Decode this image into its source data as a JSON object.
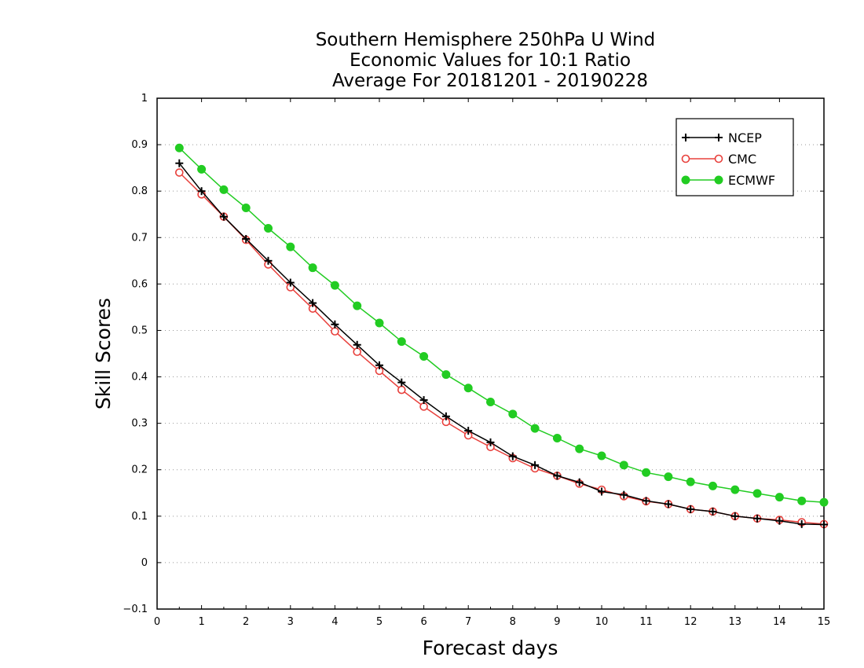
{
  "chart_data": {
    "type": "line",
    "title_lines": [
      "Southern Hemisphere 250hPa U Wind",
      "Economic Values for 10:1 Ratio",
      "Average For 20181201 - 20190228"
    ],
    "xlabel": "Forecast days",
    "ylabel": "Skill Scores",
    "xlim": [
      0,
      15
    ],
    "ylim": [
      -0.1,
      1
    ],
    "xticks": [
      "0",
      "1",
      "2",
      "3",
      "4",
      "5",
      "6",
      "7",
      "8",
      "9",
      "10",
      "11",
      "12",
      "13",
      "14",
      "15"
    ],
    "yticks": [
      "-0.1",
      "0",
      "0.1",
      "0.2",
      "0.3",
      "0.4",
      "0.5",
      "0.6",
      "0.7",
      "0.8",
      "0.9",
      "1"
    ],
    "grid": "horizontal dotted",
    "legend_position": "top-right",
    "x": [
      0.5,
      1,
      1.5,
      2,
      2.5,
      3,
      3.5,
      4,
      4.5,
      5,
      5.5,
      6,
      6.5,
      7,
      7.5,
      8,
      8.5,
      9,
      9.5,
      10,
      10.5,
      11,
      11.5,
      12,
      12.5,
      13,
      13.5,
      14,
      14.5,
      15
    ],
    "series": [
      {
        "name": "NCEP",
        "color": "#000000",
        "marker": "plus",
        "values": [
          0.86,
          0.8,
          0.745,
          0.697,
          0.65,
          0.603,
          0.559,
          0.513,
          0.469,
          0.425,
          0.388,
          0.35,
          0.315,
          0.284,
          0.259,
          0.229,
          0.21,
          0.187,
          0.173,
          0.153,
          0.146,
          0.133,
          0.126,
          0.115,
          0.11,
          0.1,
          0.095,
          0.09,
          0.083,
          0.082
        ]
      },
      {
        "name": "CMC",
        "color": "#e8403c",
        "marker": "open-circle",
        "values": [
          0.84,
          0.793,
          0.745,
          0.695,
          0.642,
          0.593,
          0.547,
          0.498,
          0.454,
          0.413,
          0.372,
          0.336,
          0.303,
          0.274,
          0.249,
          0.225,
          0.203,
          0.187,
          0.17,
          0.157,
          0.143,
          0.132,
          0.126,
          0.115,
          0.11,
          0.1,
          0.095,
          0.092,
          0.087,
          0.083
        ]
      },
      {
        "name": "ECMWF",
        "color": "#22cc22",
        "marker": "filled-circle",
        "values": [
          0.893,
          0.847,
          0.803,
          0.764,
          0.72,
          0.68,
          0.635,
          0.597,
          0.553,
          0.516,
          0.476,
          0.444,
          0.405,
          0.376,
          0.346,
          0.32,
          0.289,
          0.268,
          0.245,
          0.23,
          0.21,
          0.194,
          0.185,
          0.174,
          0.165,
          0.157,
          0.149,
          0.141,
          0.133,
          0.13
        ]
      }
    ]
  }
}
